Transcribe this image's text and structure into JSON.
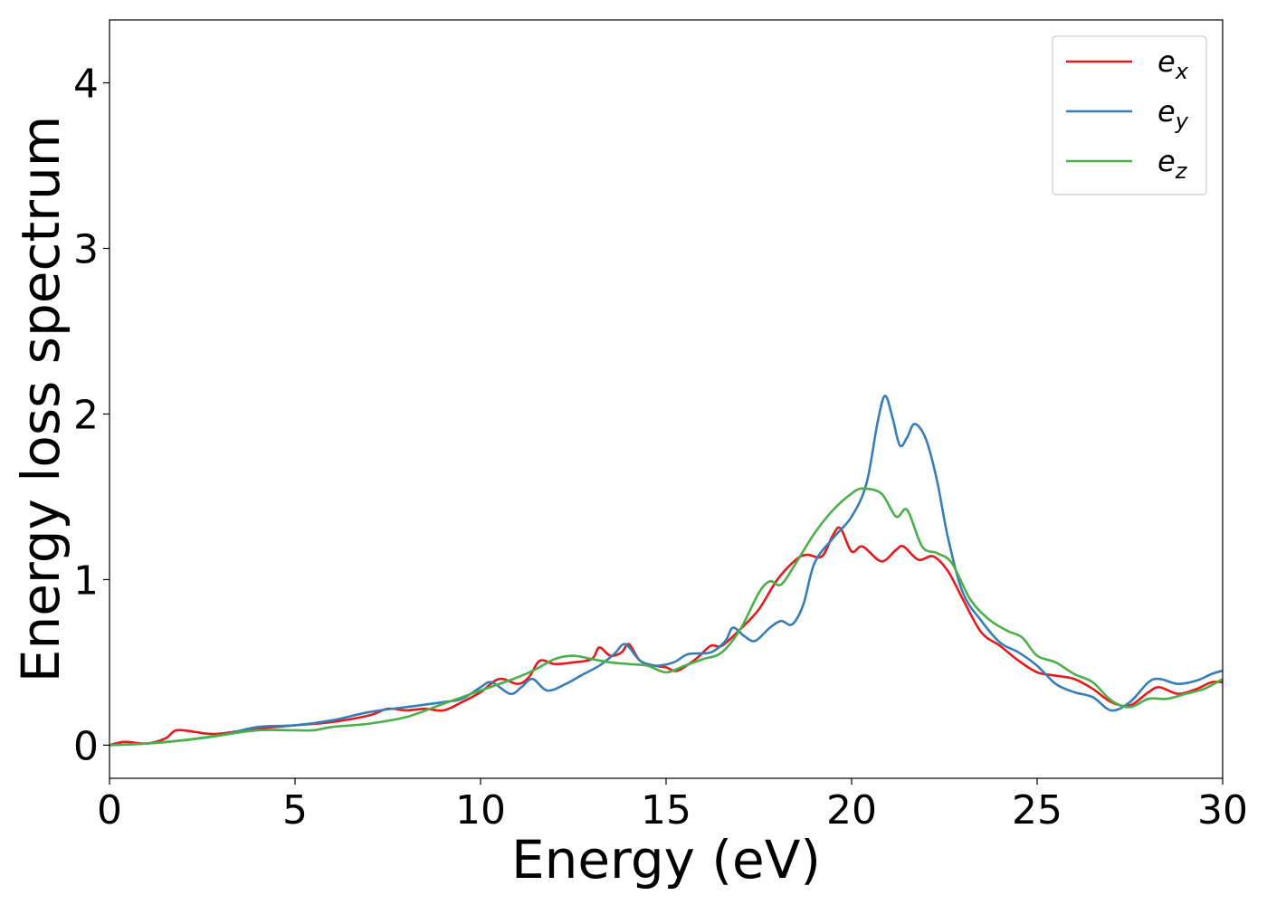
{
  "chart_data": {
    "type": "line",
    "title": "",
    "xlabel": "Energy (eV)",
    "ylabel": "Energy loss spectrum",
    "xlim": [
      0,
      30
    ],
    "ylim": [
      -0.2,
      4.38
    ],
    "x_ticks": [
      0,
      5,
      10,
      15,
      20,
      25,
      30
    ],
    "y_ticks": [
      0,
      1,
      2,
      3,
      4
    ],
    "grid": false,
    "legend": {
      "placement": "top-right"
    },
    "series": [
      {
        "name": "e_x",
        "label_base": "e",
        "label_sub": "x",
        "color": "#e41a1c",
        "points": [
          [
            0,
            0
          ],
          [
            0.4,
            0.02
          ],
          [
            1,
            0.01
          ],
          [
            1.5,
            0.04
          ],
          [
            1.8,
            0.09
          ],
          [
            2.3,
            0.08
          ],
          [
            2.6,
            0.07
          ],
          [
            3,
            0.07
          ],
          [
            4,
            0.1
          ],
          [
            5,
            0.12
          ],
          [
            6,
            0.14
          ],
          [
            7,
            0.18
          ],
          [
            7.5,
            0.22
          ],
          [
            8,
            0.21
          ],
          [
            8.5,
            0.22
          ],
          [
            9,
            0.21
          ],
          [
            9.5,
            0.26
          ],
          [
            10,
            0.32
          ],
          [
            10.5,
            0.4
          ],
          [
            11,
            0.37
          ],
          [
            11.3,
            0.41
          ],
          [
            11.6,
            0.51
          ],
          [
            12,
            0.49
          ],
          [
            12.5,
            0.5
          ],
          [
            13,
            0.52
          ],
          [
            13.2,
            0.59
          ],
          [
            13.5,
            0.54
          ],
          [
            13.8,
            0.56
          ],
          [
            14,
            0.61
          ],
          [
            14.3,
            0.51
          ],
          [
            14.7,
            0.48
          ],
          [
            15,
            0.47
          ],
          [
            15.3,
            0.45
          ],
          [
            15.8,
            0.52
          ],
          [
            16.2,
            0.6
          ],
          [
            16.5,
            0.6
          ],
          [
            17,
            0.7
          ],
          [
            17.5,
            0.82
          ],
          [
            18,
            1.0
          ],
          [
            18.5,
            1.12
          ],
          [
            18.8,
            1.15
          ],
          [
            19.2,
            1.14
          ],
          [
            19.5,
            1.27
          ],
          [
            19.7,
            1.31
          ],
          [
            20,
            1.17
          ],
          [
            20.3,
            1.2
          ],
          [
            20.8,
            1.11
          ],
          [
            21.2,
            1.18
          ],
          [
            21.4,
            1.2
          ],
          [
            21.8,
            1.12
          ],
          [
            22.2,
            1.14
          ],
          [
            22.6,
            1.05
          ],
          [
            23,
            0.88
          ],
          [
            23.5,
            0.68
          ],
          [
            24,
            0.6
          ],
          [
            24.5,
            0.51
          ],
          [
            25,
            0.44
          ],
          [
            25.5,
            0.42
          ],
          [
            26,
            0.4
          ],
          [
            26.5,
            0.34
          ],
          [
            27,
            0.26
          ],
          [
            27.5,
            0.24
          ],
          [
            28,
            0.32
          ],
          [
            28.3,
            0.35
          ],
          [
            28.8,
            0.31
          ],
          [
            29.3,
            0.34
          ],
          [
            29.7,
            0.38
          ],
          [
            30,
            0.38
          ]
        ]
      },
      {
        "name": "e_y",
        "label_base": "e",
        "label_sub": "y",
        "color": "#377eb8",
        "points": [
          [
            0,
            0
          ],
          [
            1,
            0.01
          ],
          [
            2,
            0.03
          ],
          [
            3,
            0.06
          ],
          [
            4,
            0.11
          ],
          [
            5,
            0.12
          ],
          [
            6,
            0.15
          ],
          [
            7,
            0.2
          ],
          [
            8,
            0.23
          ],
          [
            9,
            0.26
          ],
          [
            9.5,
            0.28
          ],
          [
            10,
            0.35
          ],
          [
            10.3,
            0.38
          ],
          [
            10.8,
            0.31
          ],
          [
            11.1,
            0.35
          ],
          [
            11.4,
            0.4
          ],
          [
            11.8,
            0.33
          ],
          [
            12.3,
            0.37
          ],
          [
            12.7,
            0.42
          ],
          [
            13.2,
            0.48
          ],
          [
            13.6,
            0.55
          ],
          [
            13.9,
            0.61
          ],
          [
            14.3,
            0.51
          ],
          [
            14.7,
            0.48
          ],
          [
            15.2,
            0.5
          ],
          [
            15.6,
            0.55
          ],
          [
            16.2,
            0.56
          ],
          [
            16.6,
            0.63
          ],
          [
            16.8,
            0.71
          ],
          [
            17.1,
            0.66
          ],
          [
            17.4,
            0.63
          ],
          [
            17.8,
            0.71
          ],
          [
            18.1,
            0.75
          ],
          [
            18.4,
            0.73
          ],
          [
            18.7,
            0.85
          ],
          [
            19,
            1.1
          ],
          [
            19.5,
            1.25
          ],
          [
            20,
            1.38
          ],
          [
            20.4,
            1.58
          ],
          [
            20.7,
            1.95
          ],
          [
            20.9,
            2.11
          ],
          [
            21.1,
            1.98
          ],
          [
            21.3,
            1.81
          ],
          [
            21.5,
            1.86
          ],
          [
            21.7,
            1.94
          ],
          [
            22,
            1.85
          ],
          [
            22.3,
            1.6
          ],
          [
            22.6,
            1.25
          ],
          [
            23,
            0.92
          ],
          [
            23.5,
            0.75
          ],
          [
            24,
            0.62
          ],
          [
            24.5,
            0.56
          ],
          [
            25,
            0.48
          ],
          [
            25.5,
            0.37
          ],
          [
            26,
            0.32
          ],
          [
            26.5,
            0.29
          ],
          [
            27,
            0.21
          ],
          [
            27.5,
            0.26
          ],
          [
            28,
            0.38
          ],
          [
            28.3,
            0.4
          ],
          [
            28.8,
            0.37
          ],
          [
            29.3,
            0.39
          ],
          [
            29.7,
            0.43
          ],
          [
            30,
            0.45
          ]
        ]
      },
      {
        "name": "e_z",
        "label_base": "e",
        "label_sub": "z",
        "color": "#4daf4a",
        "points": [
          [
            0,
            0
          ],
          [
            1,
            0.01
          ],
          [
            2,
            0.03
          ],
          [
            3,
            0.06
          ],
          [
            4,
            0.09
          ],
          [
            5,
            0.09
          ],
          [
            5.5,
            0.09
          ],
          [
            6,
            0.11
          ],
          [
            7,
            0.13
          ],
          [
            8,
            0.17
          ],
          [
            9,
            0.25
          ],
          [
            10,
            0.33
          ],
          [
            11,
            0.41
          ],
          [
            11.5,
            0.46
          ],
          [
            12,
            0.52
          ],
          [
            12.5,
            0.54
          ],
          [
            13,
            0.52
          ],
          [
            13.5,
            0.5
          ],
          [
            14,
            0.49
          ],
          [
            14.5,
            0.48
          ],
          [
            15,
            0.44
          ],
          [
            15.5,
            0.48
          ],
          [
            16,
            0.52
          ],
          [
            16.5,
            0.56
          ],
          [
            17,
            0.7
          ],
          [
            17.5,
            0.92
          ],
          [
            17.8,
            0.99
          ],
          [
            18.1,
            0.97
          ],
          [
            18.5,
            1.1
          ],
          [
            19,
            1.28
          ],
          [
            19.5,
            1.42
          ],
          [
            20,
            1.52
          ],
          [
            20.3,
            1.55
          ],
          [
            20.8,
            1.52
          ],
          [
            21.2,
            1.38
          ],
          [
            21.5,
            1.42
          ],
          [
            21.9,
            1.2
          ],
          [
            22.3,
            1.16
          ],
          [
            22.7,
            1.1
          ],
          [
            23.2,
            0.88
          ],
          [
            23.7,
            0.76
          ],
          [
            24.2,
            0.69
          ],
          [
            24.6,
            0.65
          ],
          [
            25,
            0.54
          ],
          [
            25.5,
            0.5
          ],
          [
            26,
            0.43
          ],
          [
            26.5,
            0.38
          ],
          [
            27,
            0.27
          ],
          [
            27.5,
            0.23
          ],
          [
            28,
            0.28
          ],
          [
            28.5,
            0.28
          ],
          [
            29,
            0.31
          ],
          [
            29.5,
            0.34
          ],
          [
            30,
            0.4
          ]
        ]
      }
    ]
  }
}
